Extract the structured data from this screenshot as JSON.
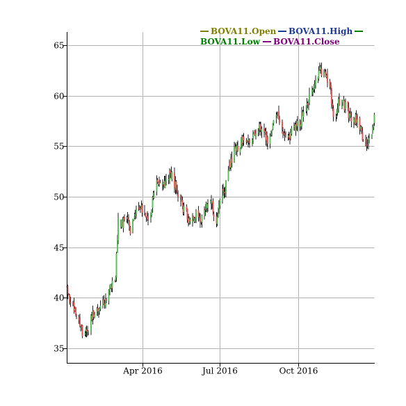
{
  "chart_data": {
    "type": "candlestick",
    "title": "",
    "xlabel": "",
    "ylabel": "",
    "ylim": [
      33.5,
      66.3
    ],
    "xlim": [
      "2016-01-04",
      "2016-12-29"
    ],
    "grid": true,
    "legend_placement": "top-right",
    "series": [
      {
        "name": "BOVA11.Open",
        "color": "#808000"
      },
      {
        "name": "BOVA11.High",
        "color": "#1f3a93"
      },
      {
        "name": "BOVA11.Low",
        "color": "#008000"
      },
      {
        "name": "BOVA11.Close",
        "color": "#800080"
      }
    ],
    "y_ticks": [
      35,
      40,
      45,
      50,
      55,
      60,
      65
    ],
    "x_ticks": [
      {
        "label": "Apr 2016",
        "date": "2016-04-01"
      },
      {
        "label": "Jul 2016",
        "date": "2016-07-01"
      },
      {
        "label": "Oct 2016",
        "date": "2016-10-01"
      }
    ],
    "up_color": "#5fbf5f",
    "down_color": "#e05a5a",
    "close_trace": [
      [
        "2016-01-04",
        41.2
      ],
      [
        "2016-01-08",
        39.6
      ],
      [
        "2016-01-13",
        38.5
      ],
      [
        "2016-01-19",
        37.5
      ],
      [
        "2016-01-22",
        36.4
      ],
      [
        "2016-01-27",
        36.8
      ],
      [
        "2016-02-02",
        38.0
      ],
      [
        "2016-02-10",
        38.8
      ],
      [
        "2016-02-17",
        39.5
      ],
      [
        "2016-02-24",
        41.2
      ],
      [
        "2016-03-01",
        42.2
      ],
      [
        "2016-03-04",
        47.9
      ],
      [
        "2016-03-09",
        47.3
      ],
      [
        "2016-03-14",
        48.0
      ],
      [
        "2016-03-18",
        46.8
      ],
      [
        "2016-03-23",
        48.6
      ],
      [
        "2016-03-29",
        49.3
      ],
      [
        "2016-04-04",
        48.5
      ],
      [
        "2016-04-08",
        47.4
      ],
      [
        "2016-04-13",
        49.4
      ],
      [
        "2016-04-19",
        51.5
      ],
      [
        "2016-04-25",
        50.9
      ],
      [
        "2016-04-29",
        51.4
      ],
      [
        "2016-05-04",
        52.4
      ],
      [
        "2016-05-09",
        51.2
      ],
      [
        "2016-05-13",
        50.3
      ],
      [
        "2016-05-18",
        48.9
      ],
      [
        "2016-05-24",
        48.0
      ],
      [
        "2016-05-30",
        47.6
      ],
      [
        "2016-06-03",
        48.4
      ],
      [
        "2016-06-09",
        47.4
      ],
      [
        "2016-06-15",
        48.9
      ],
      [
        "2016-06-21",
        49.2
      ],
      [
        "2016-06-27",
        47.9
      ],
      [
        "2016-07-01",
        49.8
      ],
      [
        "2016-07-07",
        50.8
      ],
      [
        "2016-07-13",
        53.3
      ],
      [
        "2016-07-19",
        54.7
      ],
      [
        "2016-07-25",
        55.2
      ],
      [
        "2016-07-29",
        55.7
      ],
      [
        "2016-08-04",
        55.3
      ],
      [
        "2016-08-10",
        56.0
      ],
      [
        "2016-08-16",
        57.0
      ],
      [
        "2016-08-22",
        56.3
      ],
      [
        "2016-08-26",
        55.6
      ],
      [
        "2016-09-01",
        57.3
      ],
      [
        "2016-09-07",
        58.0
      ],
      [
        "2016-09-13",
        55.8
      ],
      [
        "2016-09-19",
        55.7
      ],
      [
        "2016-09-23",
        56.4
      ],
      [
        "2016-09-29",
        56.9
      ],
      [
        "2016-10-05",
        57.8
      ],
      [
        "2016-10-11",
        59.2
      ],
      [
        "2016-10-17",
        60.5
      ],
      [
        "2016-10-21",
        61.7
      ],
      [
        "2016-10-27",
        62.6
      ],
      [
        "2016-11-01",
        62.3
      ],
      [
        "2016-11-07",
        61.3
      ],
      [
        "2016-11-11",
        57.6
      ],
      [
        "2016-11-16",
        59.2
      ],
      [
        "2016-11-22",
        59.3
      ],
      [
        "2016-11-28",
        58.5
      ],
      [
        "2016-12-02",
        57.4
      ],
      [
        "2016-12-08",
        57.8
      ],
      [
        "2016-12-14",
        56.3
      ],
      [
        "2016-12-20",
        55.2
      ],
      [
        "2016-12-26",
        56.6
      ],
      [
        "2016-12-29",
        57.9
      ]
    ]
  }
}
